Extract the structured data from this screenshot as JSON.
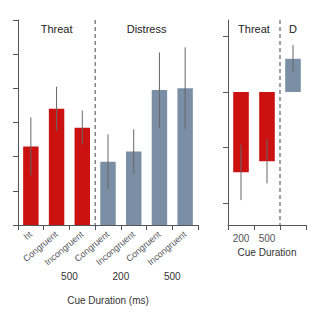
{
  "chart_data": [
    {
      "type": "bar",
      "xlabel": "Cue Duration (ms)",
      "categories": [
        "ht",
        "Congruent",
        "Incongruent",
        "Congruent",
        "Incongruent",
        "Congruent",
        "Incongruent"
      ],
      "group_labels": [
        null,
        "500",
        "500",
        "200",
        "200",
        "500",
        "500"
      ],
      "sections": [
        "Threat",
        "Threat",
        "Threat",
        "Distress",
        "Distress",
        "Distress",
        "Distress"
      ],
      "values": [
        230,
        340,
        285,
        185,
        215,
        395,
        400
      ],
      "errors": [
        85,
        65,
        50,
        80,
        65,
        110,
        120
      ],
      "colors": [
        "#cc1111",
        "#cc1111",
        "#cc1111",
        "#7a8fa6",
        "#7a8fa6",
        "#7a8fa6",
        "#7a8fa6"
      ],
      "ylim": [
        0,
        600
      ],
      "yticks": [
        0,
        100,
        200,
        300,
        400,
        500,
        600
      ],
      "grid": false,
      "tick_labels": "x"
    },
    {
      "type": "bar",
      "xlabel": "Cue Duration",
      "categories": [
        "200",
        "500",
        null
      ],
      "sections": [
        "Threat",
        "Threat",
        "D"
      ],
      "values": [
        -145,
        -125,
        60
      ],
      "errors": [
        50,
        40,
        25
      ],
      "colors": [
        "#cc1111",
        "#cc1111",
        "#7a8fa6"
      ],
      "ylim": [
        -240,
        130
      ],
      "yticks": [
        -200,
        -100,
        0,
        100
      ],
      "grid": false,
      "tick_labels": "x"
    }
  ]
}
